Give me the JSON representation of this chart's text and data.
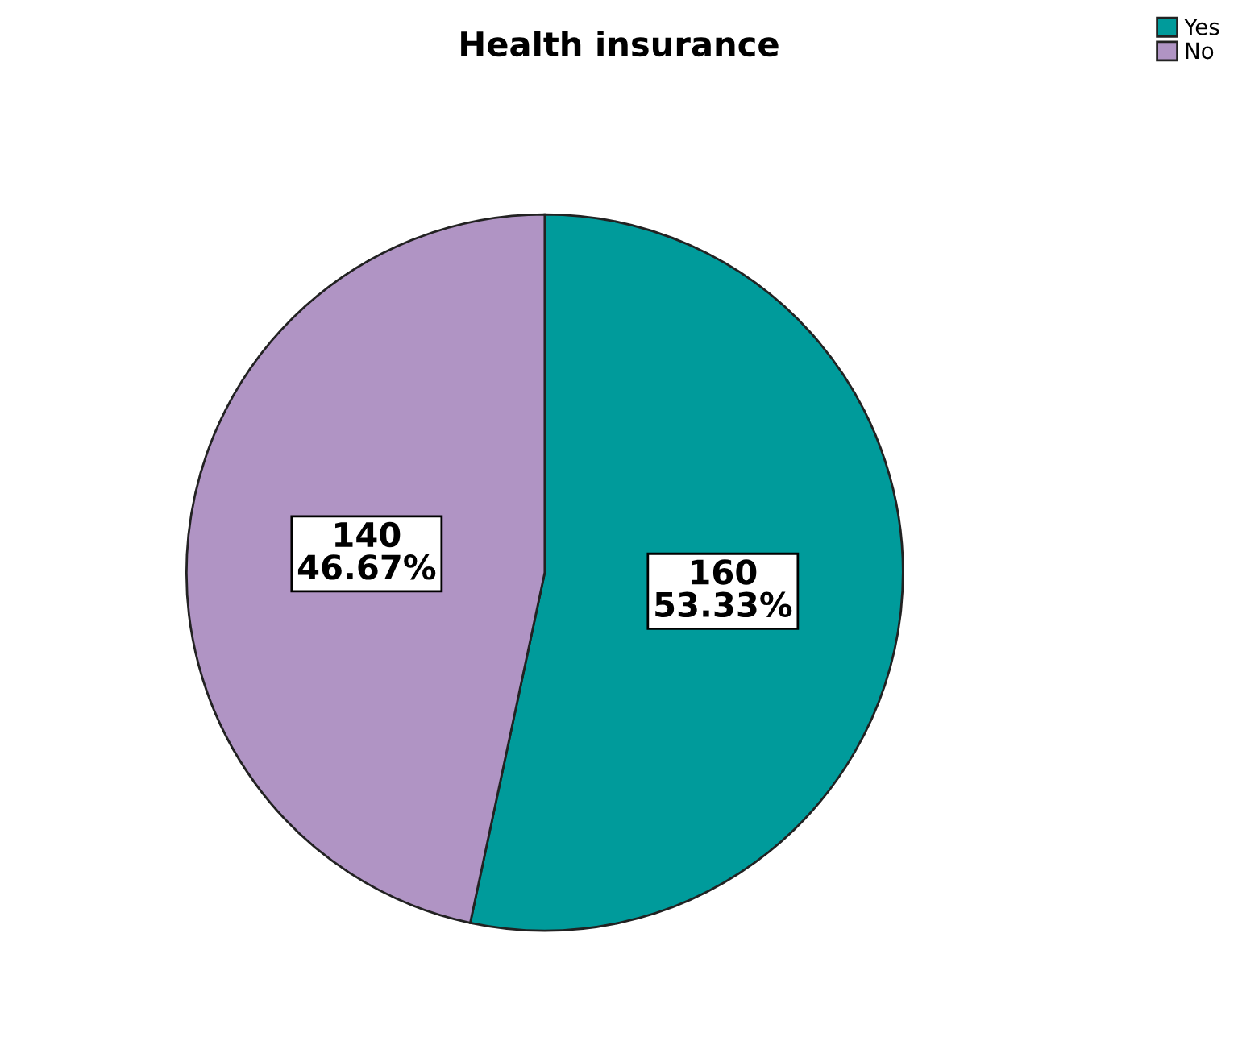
{
  "chart_data": {
    "type": "pie",
    "title": "Health insurance",
    "categories": [
      "Yes",
      "No"
    ],
    "values": [
      160,
      140
    ],
    "colors": [
      "#009b9b",
      "#b094c4"
    ],
    "value_labels": [
      "160\n53.33%",
      "140\n46.67%"
    ],
    "legend": "top right"
  }
}
